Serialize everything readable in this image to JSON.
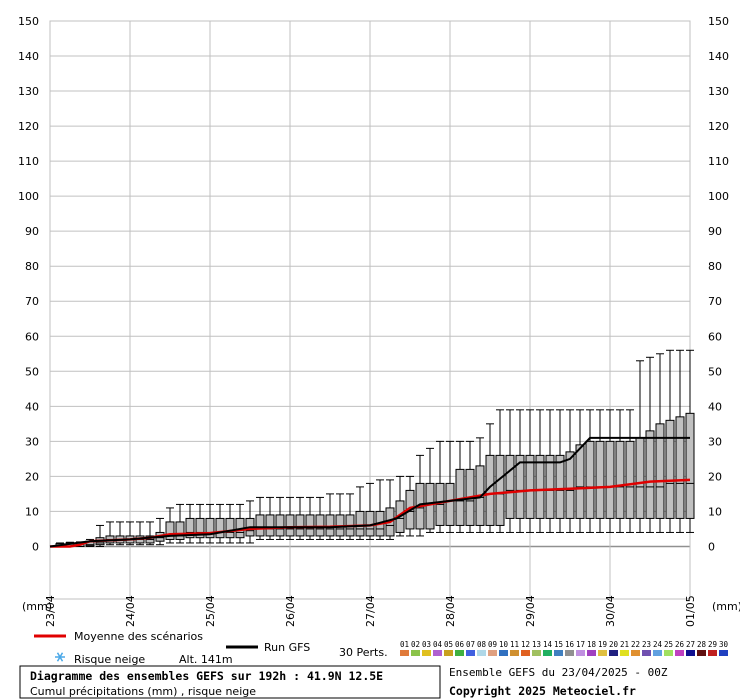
{
  "chart_data": {
    "type": "box",
    "title": "Diagramme des ensembles GEFS sur 192h : 41.9N 12.5E",
    "subtitle": "Cumul précipitations (mm) , risque neige",
    "ylabel": "(mm)",
    "ylim": [
      -15,
      150
    ],
    "y_ticks": [
      0,
      10,
      20,
      30,
      40,
      50,
      60,
      70,
      80,
      90,
      100,
      110,
      120,
      130,
      140,
      150
    ],
    "x_range_hours": [
      0,
      192
    ],
    "x_ticks": [
      {
        "label": "23/04",
        "hour": 0
      },
      {
        "label": "24/04",
        "hour": 24
      },
      {
        "label": "25/04",
        "hour": 48
      },
      {
        "label": "26/04",
        "hour": 72
      },
      {
        "label": "27/04",
        "hour": 96
      },
      {
        "label": "28/04",
        "hour": 120
      },
      {
        "label": "29/04",
        "hour": 144
      },
      {
        "label": "30/04",
        "hour": 168
      },
      {
        "label": "01/05",
        "hour": 192
      }
    ],
    "mean_line": [
      [
        0,
        0
      ],
      [
        6,
        0
      ],
      [
        9,
        0.5
      ],
      [
        12,
        1.5
      ],
      [
        24,
        2
      ],
      [
        30,
        2.5
      ],
      [
        36,
        3.5
      ],
      [
        48,
        3.8
      ],
      [
        60,
        5
      ],
      [
        72,
        5.5
      ],
      [
        84,
        5.6
      ],
      [
        96,
        6
      ],
      [
        102,
        7
      ],
      [
        108,
        11
      ],
      [
        114,
        12
      ],
      [
        120,
        13
      ],
      [
        132,
        15
      ],
      [
        144,
        16
      ],
      [
        156,
        16.5
      ],
      [
        168,
        17
      ],
      [
        180,
        18.5
      ],
      [
        192,
        19
      ]
    ],
    "gfs_line": [
      [
        0,
        0
      ],
      [
        12,
        1.5
      ],
      [
        24,
        2
      ],
      [
        36,
        3
      ],
      [
        48,
        3.5
      ],
      [
        60,
        5.5
      ],
      [
        72,
        5.5
      ],
      [
        84,
        5.5
      ],
      [
        96,
        6
      ],
      [
        104,
        8
      ],
      [
        111,
        12
      ],
      [
        120,
        13
      ],
      [
        129,
        14
      ],
      [
        132,
        17
      ],
      [
        141,
        24
      ],
      [
        153,
        24
      ],
      [
        156,
        25
      ],
      [
        162,
        31
      ],
      [
        192,
        31
      ]
    ],
    "boxes": [
      {
        "x": 3,
        "min": 0,
        "q1": 0,
        "med": 0,
        "q3": 0.8,
        "max": 1
      },
      {
        "x": 6,
        "min": 0,
        "q1": 0,
        "med": 0,
        "q3": 1,
        "max": 1.2
      },
      {
        "x": 9,
        "min": 0,
        "q1": 0,
        "med": 0,
        "q3": 1,
        "max": 1.3
      },
      {
        "x": 12,
        "min": 0,
        "q1": 0.2,
        "med": 0.5,
        "q3": 1.5,
        "max": 2
      },
      {
        "x": 15,
        "min": 0,
        "q1": 0.5,
        "med": 1,
        "q3": 2.5,
        "max": 6
      },
      {
        "x": 18,
        "min": 0.5,
        "q1": 1,
        "med": 2,
        "q3": 3,
        "max": 7
      },
      {
        "x": 21,
        "min": 0.5,
        "q1": 1,
        "med": 2,
        "q3": 3,
        "max": 7
      },
      {
        "x": 24,
        "min": 0.5,
        "q1": 1,
        "med": 2,
        "q3": 3,
        "max": 7
      },
      {
        "x": 27,
        "min": 0.5,
        "q1": 1,
        "med": 2,
        "q3": 3,
        "max": 7
      },
      {
        "x": 30,
        "min": 0.5,
        "q1": 1,
        "med": 2,
        "q3": 3,
        "max": 7
      },
      {
        "x": 33,
        "min": 0.5,
        "q1": 1.5,
        "med": 2.5,
        "q3": 4,
        "max": 8
      },
      {
        "x": 36,
        "min": 1,
        "q1": 2,
        "med": 3,
        "q3": 7,
        "max": 11
      },
      {
        "x": 39,
        "min": 1,
        "q1": 2,
        "med": 3,
        "q3": 7,
        "max": 12
      },
      {
        "x": 42,
        "min": 1,
        "q1": 2.5,
        "med": 4,
        "q3": 8,
        "max": 12
      },
      {
        "x": 45,
        "min": 1,
        "q1": 2.5,
        "med": 4,
        "q3": 8,
        "max": 12
      },
      {
        "x": 48,
        "min": 1,
        "q1": 2.5,
        "med": 4,
        "q3": 8,
        "max": 12
      },
      {
        "x": 51,
        "min": 1,
        "q1": 2.5,
        "med": 4,
        "q3": 8,
        "max": 12
      },
      {
        "x": 54,
        "min": 1,
        "q1": 2.5,
        "med": 4,
        "q3": 8,
        "max": 12
      },
      {
        "x": 57,
        "min": 1,
        "q1": 2.5,
        "med": 4,
        "q3": 8,
        "max": 12
      },
      {
        "x": 60,
        "min": 1,
        "q1": 3,
        "med": 4.5,
        "q3": 8,
        "max": 13
      },
      {
        "x": 63,
        "min": 2,
        "q1": 3,
        "med": 5,
        "q3": 9,
        "max": 14
      },
      {
        "x": 66,
        "min": 2,
        "q1": 3,
        "med": 5,
        "q3": 9,
        "max": 14
      },
      {
        "x": 69,
        "min": 2,
        "q1": 3,
        "med": 5,
        "q3": 9,
        "max": 14
      },
      {
        "x": 72,
        "min": 2,
        "q1": 3,
        "med": 5,
        "q3": 9,
        "max": 14
      },
      {
        "x": 75,
        "min": 2,
        "q1": 3,
        "med": 5,
        "q3": 9,
        "max": 14
      },
      {
        "x": 78,
        "min": 2,
        "q1": 3,
        "med": 5,
        "q3": 9,
        "max": 14
      },
      {
        "x": 81,
        "min": 2,
        "q1": 3,
        "med": 5,
        "q3": 9,
        "max": 14
      },
      {
        "x": 84,
        "min": 2,
        "q1": 3,
        "med": 5,
        "q3": 9,
        "max": 15
      },
      {
        "x": 87,
        "min": 2,
        "q1": 3,
        "med": 5,
        "q3": 9,
        "max": 15
      },
      {
        "x": 90,
        "min": 2,
        "q1": 3,
        "med": 5,
        "q3": 9,
        "max": 15
      },
      {
        "x": 93,
        "min": 2,
        "q1": 3,
        "med": 5,
        "q3": 10,
        "max": 17
      },
      {
        "x": 96,
        "min": 2,
        "q1": 3,
        "med": 5,
        "q3": 10,
        "max": 18
      },
      {
        "x": 99,
        "min": 2,
        "q1": 3,
        "med": 5,
        "q3": 10,
        "max": 19
      },
      {
        "x": 102,
        "min": 2,
        "q1": 3,
        "med": 6,
        "q3": 11,
        "max": 19
      },
      {
        "x": 105,
        "min": 3,
        "q1": 4,
        "med": 8,
        "q3": 13,
        "max": 20
      },
      {
        "x": 108,
        "min": 3,
        "q1": 5,
        "med": 10,
        "q3": 16,
        "max": 20
      },
      {
        "x": 111,
        "min": 3,
        "q1": 5,
        "med": 11,
        "q3": 18,
        "max": 26
      },
      {
        "x": 114,
        "min": 4,
        "q1": 5,
        "med": 12,
        "q3": 18,
        "max": 28
      },
      {
        "x": 117,
        "min": 4,
        "q1": 6,
        "med": 12,
        "q3": 18,
        "max": 30
      },
      {
        "x": 120,
        "min": 4,
        "q1": 6,
        "med": 13,
        "q3": 18,
        "max": 30
      },
      {
        "x": 123,
        "min": 4,
        "q1": 6,
        "med": 13,
        "q3": 22,
        "max": 30
      },
      {
        "x": 126,
        "min": 4,
        "q1": 6,
        "med": 13,
        "q3": 22,
        "max": 30
      },
      {
        "x": 129,
        "min": 4,
        "q1": 6,
        "med": 14,
        "q3": 23,
        "max": 31
      },
      {
        "x": 132,
        "min": 4,
        "q1": 6,
        "med": 15,
        "q3": 26,
        "max": 35
      },
      {
        "x": 135,
        "min": 4,
        "q1": 6,
        "med": 15,
        "q3": 26,
        "max": 39
      },
      {
        "x": 138,
        "min": 4,
        "q1": 8,
        "med": 16,
        "q3": 26,
        "max": 39
      },
      {
        "x": 141,
        "min": 4,
        "q1": 8,
        "med": 16,
        "q3": 26,
        "max": 39
      },
      {
        "x": 144,
        "min": 4,
        "q1": 8,
        "med": 16,
        "q3": 26,
        "max": 39
      },
      {
        "x": 147,
        "min": 4,
        "q1": 8,
        "med": 16,
        "q3": 26,
        "max": 39
      },
      {
        "x": 150,
        "min": 4,
        "q1": 8,
        "med": 16,
        "q3": 26,
        "max": 39
      },
      {
        "x": 153,
        "min": 4,
        "q1": 8,
        "med": 16,
        "q3": 26,
        "max": 39
      },
      {
        "x": 156,
        "min": 4,
        "q1": 8,
        "med": 16,
        "q3": 27,
        "max": 39
      },
      {
        "x": 159,
        "min": 4,
        "q1": 8,
        "med": 17,
        "q3": 29,
        "max": 39
      },
      {
        "x": 162,
        "min": 4,
        "q1": 8,
        "med": 17,
        "q3": 30,
        "max": 39
      },
      {
        "x": 165,
        "min": 4,
        "q1": 8,
        "med": 17,
        "q3": 30,
        "max": 39
      },
      {
        "x": 168,
        "min": 4,
        "q1": 8,
        "med": 17,
        "q3": 30,
        "max": 39
      },
      {
        "x": 171,
        "min": 4,
        "q1": 8,
        "med": 17,
        "q3": 30,
        "max": 39
      },
      {
        "x": 174,
        "min": 4,
        "q1": 8,
        "med": 17,
        "q3": 30,
        "max": 39
      },
      {
        "x": 177,
        "min": 4,
        "q1": 8,
        "med": 17,
        "q3": 31,
        "max": 53
      },
      {
        "x": 180,
        "min": 4,
        "q1": 8,
        "med": 17,
        "q3": 33,
        "max": 54
      },
      {
        "x": 183,
        "min": 4,
        "q1": 8,
        "med": 17,
        "q3": 35,
        "max": 55
      },
      {
        "x": 186,
        "min": 4,
        "q1": 8,
        "med": 18,
        "q3": 36,
        "max": 56
      },
      {
        "x": 189,
        "min": 4,
        "q1": 8,
        "med": 18,
        "q3": 37,
        "max": 56
      },
      {
        "x": 192,
        "min": 4,
        "q1": 8,
        "med": 18,
        "q3": 38,
        "max": 56
      }
    ],
    "legend": {
      "mean_label": "Moyenne des scénarios",
      "gfs_label": "Run GFS",
      "snow_label": "Risque neige",
      "alt_label": "Alt. 141m",
      "perts_label": "30 Perts.",
      "perts": [
        {
          "n": "01",
          "color": "#e07a3a"
        },
        {
          "n": "02",
          "color": "#8bc34a"
        },
        {
          "n": "03",
          "color": "#e0c020"
        },
        {
          "n": "04",
          "color": "#b060d0"
        },
        {
          "n": "05",
          "color": "#c8a020"
        },
        {
          "n": "06",
          "color": "#40b040"
        },
        {
          "n": "07",
          "color": "#4060e0"
        },
        {
          "n": "08",
          "color": "#b0d8e8"
        },
        {
          "n": "09",
          "color": "#e0a080"
        },
        {
          "n": "10",
          "color": "#3070c0"
        },
        {
          "n": "11",
          "color": "#d09030"
        },
        {
          "n": "12",
          "color": "#e06020"
        },
        {
          "n": "13",
          "color": "#a0c060"
        },
        {
          "n": "14",
          "color": "#20b060"
        },
        {
          "n": "15",
          "color": "#4080c0"
        },
        {
          "n": "16",
          "color": "#909090"
        },
        {
          "n": "17",
          "color": "#c090e0"
        },
        {
          "n": "18",
          "color": "#a040c0"
        },
        {
          "n": "19",
          "color": "#e0c040"
        },
        {
          "n": "20",
          "color": "#202080"
        },
        {
          "n": "21",
          "color": "#e0e020"
        },
        {
          "n": "22",
          "color": "#e09030"
        },
        {
          "n": "23",
          "color": "#7050b0"
        },
        {
          "n": "24",
          "color": "#60a0e0"
        },
        {
          "n": "25",
          "color": "#a0e060"
        },
        {
          "n": "26",
          "color": "#c040c0"
        },
        {
          "n": "27",
          "color": "#101090"
        },
        {
          "n": "28",
          "color": "#601010"
        },
        {
          "n": "29",
          "color": "#c02020"
        },
        {
          "n": "30",
          "color": "#2040c0"
        }
      ]
    },
    "colors": {
      "mean": "#e00000",
      "gfs": "#000000",
      "box_fill": "#c0c0c0",
      "grid": "#c0c0c0",
      "snow": "#4aa8e8"
    }
  },
  "footer": {
    "ensemble_date": "Ensemble GEFS du 23/04/2025 - 00Z",
    "copyright": "Copyright 2025 Meteociel.fr"
  }
}
